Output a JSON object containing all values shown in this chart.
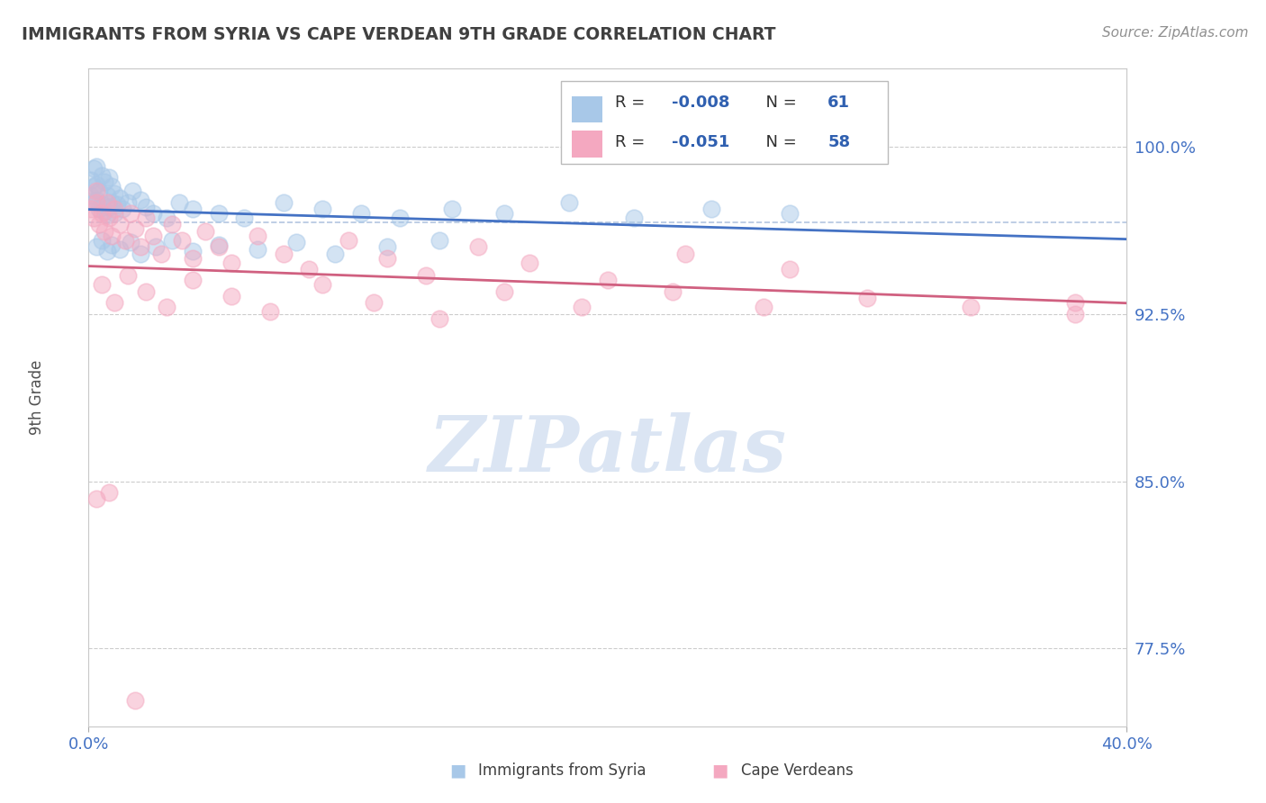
{
  "title": "IMMIGRANTS FROM SYRIA VS CAPE VERDEAN 9TH GRADE CORRELATION CHART",
  "source_text": "Source: ZipAtlas.com",
  "ylabel": "9th Grade",
  "ytick_labels": [
    "77.5%",
    "85.0%",
    "92.5%",
    "100.0%"
  ],
  "ytick_values": [
    0.775,
    0.85,
    0.925,
    1.0
  ],
  "xmin": 0.0,
  "xmax": 0.4,
  "ymin": 0.74,
  "ymax": 1.035,
  "legend_r1": "-0.008",
  "legend_n1": "61",
  "legend_r2": "-0.051",
  "legend_n2": "58",
  "color_blue": "#A8C8E8",
  "color_pink": "#F4A8C0",
  "color_blue_line": "#4472C4",
  "color_pink_line": "#D06080",
  "color_dashed": "#A0B8D8",
  "color_grid": "#CCCCCC",
  "color_r_value": "#3060B0",
  "color_n_value": "#3060B0",
  "color_title": "#404040",
  "color_source": "#909090",
  "color_yaxis": "#4472C4",
  "watermark_color": "#C8D8EE",
  "syria_x": [
    0.001,
    0.001,
    0.002,
    0.002,
    0.002,
    0.003,
    0.003,
    0.003,
    0.004,
    0.004,
    0.005,
    0.005,
    0.006,
    0.006,
    0.007,
    0.007,
    0.008,
    0.008,
    0.009,
    0.009,
    0.01,
    0.01,
    0.011,
    0.012,
    0.013,
    0.015,
    0.017,
    0.02,
    0.022,
    0.025,
    0.03,
    0.035,
    0.04,
    0.05,
    0.06,
    0.075,
    0.09,
    0.105,
    0.12,
    0.14,
    0.16,
    0.185,
    0.21,
    0.24,
    0.27,
    0.003,
    0.005,
    0.007,
    0.009,
    0.012,
    0.016,
    0.02,
    0.026,
    0.032,
    0.04,
    0.05,
    0.065,
    0.08,
    0.095,
    0.115,
    0.135
  ],
  "syria_y": [
    0.978,
    0.985,
    0.975,
    0.982,
    0.99,
    0.976,
    0.983,
    0.991,
    0.972,
    0.98,
    0.974,
    0.987,
    0.971,
    0.984,
    0.969,
    0.978,
    0.973,
    0.986,
    0.975,
    0.982,
    0.97,
    0.979,
    0.974,
    0.977,
    0.972,
    0.975,
    0.98,
    0.976,
    0.973,
    0.97,
    0.968,
    0.975,
    0.972,
    0.97,
    0.968,
    0.975,
    0.972,
    0.97,
    0.968,
    0.972,
    0.97,
    0.975,
    0.968,
    0.972,
    0.97,
    0.955,
    0.958,
    0.953,
    0.956,
    0.954,
    0.957,
    0.952,
    0.955,
    0.958,
    0.953,
    0.956,
    0.954,
    0.957,
    0.952,
    0.955,
    0.958
  ],
  "capeverde_x": [
    0.001,
    0.002,
    0.003,
    0.003,
    0.004,
    0.005,
    0.006,
    0.007,
    0.008,
    0.009,
    0.01,
    0.012,
    0.014,
    0.016,
    0.018,
    0.02,
    0.022,
    0.025,
    0.028,
    0.032,
    0.036,
    0.04,
    0.045,
    0.05,
    0.055,
    0.065,
    0.075,
    0.085,
    0.1,
    0.115,
    0.13,
    0.15,
    0.17,
    0.2,
    0.23,
    0.27,
    0.005,
    0.01,
    0.015,
    0.022,
    0.03,
    0.04,
    0.055,
    0.07,
    0.09,
    0.11,
    0.135,
    0.16,
    0.19,
    0.225,
    0.26,
    0.3,
    0.34,
    0.38,
    0.38,
    0.003,
    0.008,
    0.018
  ],
  "capeverde_y": [
    0.972,
    0.968,
    0.975,
    0.98,
    0.965,
    0.97,
    0.962,
    0.975,
    0.968,
    0.96,
    0.972,
    0.965,
    0.958,
    0.97,
    0.963,
    0.955,
    0.968,
    0.96,
    0.952,
    0.965,
    0.958,
    0.95,
    0.962,
    0.955,
    0.948,
    0.96,
    0.952,
    0.945,
    0.958,
    0.95,
    0.942,
    0.955,
    0.948,
    0.94,
    0.952,
    0.945,
    0.938,
    0.93,
    0.942,
    0.935,
    0.928,
    0.94,
    0.933,
    0.926,
    0.938,
    0.93,
    0.923,
    0.935,
    0.928,
    0.935,
    0.928,
    0.932,
    0.928,
    0.93,
    0.925,
    0.842,
    0.845,
    0.752
  ]
}
